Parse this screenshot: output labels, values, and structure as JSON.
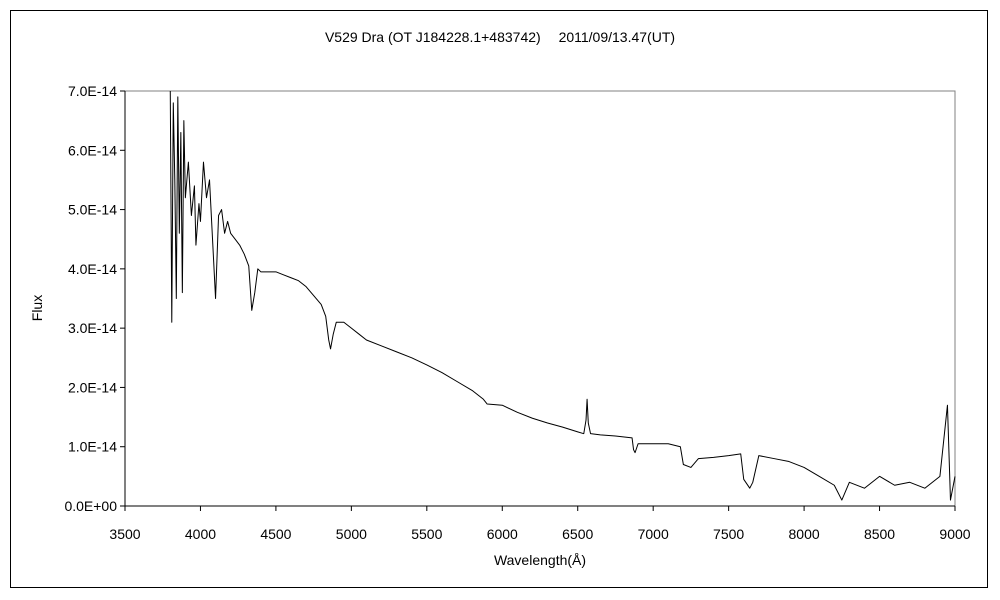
{
  "chart_data": {
    "type": "line",
    "title": "V529 Dra (OT J184228.1+483742)　 2011/09/13.47(UT)",
    "xlabel": "Wavelength(Å)",
    "ylabel": "Flux",
    "xlim": [
      3500,
      9000
    ],
    "ylim": [
      0,
      7e-14
    ],
    "x_ticks": [
      3500,
      4000,
      4500,
      5000,
      5500,
      6000,
      6500,
      7000,
      7500,
      8000,
      8500,
      9000
    ],
    "x_tick_labels": [
      "3500",
      "4000",
      "4500",
      "5000",
      "5500",
      "6000",
      "6500",
      "7000",
      "7500",
      "8000",
      "8500",
      "9000"
    ],
    "y_ticks": [
      0,
      1e-14,
      2e-14,
      3e-14,
      4e-14,
      5e-14,
      6e-14,
      7e-14
    ],
    "y_tick_labels": [
      "0.0E+00",
      "1.0E-14",
      "2.0E-14",
      "3.0E-14",
      "4.0E-14",
      "5.0E-14",
      "6.0E-14",
      "7.0E-14"
    ],
    "grid": false,
    "legend": "none",
    "series": [
      {
        "color": "#000000",
        "points": [
          [
            3800,
            7e-14
          ],
          [
            3810,
            3.1e-14
          ],
          [
            3820,
            6.8e-14
          ],
          [
            3830,
            5.5e-14
          ],
          [
            3840,
            3.5e-14
          ],
          [
            3850,
            6.9e-14
          ],
          [
            3860,
            4.6e-14
          ],
          [
            3870,
            6.3e-14
          ],
          [
            3880,
            3.6e-14
          ],
          [
            3890,
            6.5e-14
          ],
          [
            3900,
            5.2e-14
          ],
          [
            3920,
            5.8e-14
          ],
          [
            3940,
            4.9e-14
          ],
          [
            3960,
            5.4e-14
          ],
          [
            3970,
            4.4e-14
          ],
          [
            3990,
            5.1e-14
          ],
          [
            4000,
            4.8e-14
          ],
          [
            4020,
            5.8e-14
          ],
          [
            4040,
            5.2e-14
          ],
          [
            4060,
            5.5e-14
          ],
          [
            4080,
            4.5e-14
          ],
          [
            4100,
            3.5e-14
          ],
          [
            4120,
            4.9e-14
          ],
          [
            4140,
            5e-14
          ],
          [
            4160,
            4.6e-14
          ],
          [
            4180,
            4.8e-14
          ],
          [
            4200,
            4.6e-14
          ],
          [
            4230,
            4.5e-14
          ],
          [
            4260,
            4.4e-14
          ],
          [
            4290,
            4.25e-14
          ],
          [
            4320,
            4.05e-14
          ],
          [
            4340,
            3.3e-14
          ],
          [
            4360,
            3.6e-14
          ],
          [
            4380,
            4e-14
          ],
          [
            4400,
            3.95e-14
          ],
          [
            4450,
            3.95e-14
          ],
          [
            4500,
            3.95e-14
          ],
          [
            4550,
            3.9e-14
          ],
          [
            4600,
            3.85e-14
          ],
          [
            4650,
            3.8e-14
          ],
          [
            4700,
            3.7e-14
          ],
          [
            4750,
            3.55e-14
          ],
          [
            4800,
            3.4e-14
          ],
          [
            4830,
            3.2e-14
          ],
          [
            4850,
            2.8e-14
          ],
          [
            4862,
            2.65e-14
          ],
          [
            4880,
            2.9e-14
          ],
          [
            4900,
            3.1e-14
          ],
          [
            4950,
            3.1e-14
          ],
          [
            5000,
            3e-14
          ],
          [
            5050,
            2.9e-14
          ],
          [
            5100,
            2.8e-14
          ],
          [
            5200,
            2.7e-14
          ],
          [
            5300,
            2.6e-14
          ],
          [
            5400,
            2.5e-14
          ],
          [
            5500,
            2.38e-14
          ],
          [
            5600,
            2.25e-14
          ],
          [
            5700,
            2.1e-14
          ],
          [
            5800,
            1.95e-14
          ],
          [
            5875,
            1.8e-14
          ],
          [
            5900,
            1.72e-14
          ],
          [
            6000,
            1.7e-14
          ],
          [
            6100,
            1.58e-14
          ],
          [
            6200,
            1.48e-14
          ],
          [
            6300,
            1.4e-14
          ],
          [
            6400,
            1.33e-14
          ],
          [
            6500,
            1.25e-14
          ],
          [
            6540,
            1.22e-14
          ],
          [
            6555,
            1.45e-14
          ],
          [
            6562,
            1.8e-14
          ],
          [
            6570,
            1.4e-14
          ],
          [
            6585,
            1.22e-14
          ],
          [
            6650,
            1.2e-14
          ],
          [
            6750,
            1.18e-14
          ],
          [
            6860,
            1.15e-14
          ],
          [
            6870,
            9.5e-15
          ],
          [
            6880,
            9e-15
          ],
          [
            6900,
            1.05e-14
          ],
          [
            7000,
            1.05e-14
          ],
          [
            7100,
            1.05e-14
          ],
          [
            7180,
            1e-14
          ],
          [
            7200,
            7e-15
          ],
          [
            7250,
            6.5e-15
          ],
          [
            7300,
            8e-15
          ],
          [
            7400,
            8.2e-15
          ],
          [
            7500,
            8.5e-15
          ],
          [
            7580,
            8.8e-15
          ],
          [
            7600,
            4.5e-15
          ],
          [
            7640,
            3e-15
          ],
          [
            7660,
            4e-15
          ],
          [
            7700,
            8.5e-15
          ],
          [
            7800,
            8e-15
          ],
          [
            7900,
            7.5e-15
          ],
          [
            8000,
            6.5e-15
          ],
          [
            8100,
            5e-15
          ],
          [
            8200,
            3.5e-15
          ],
          [
            8250,
            1e-15
          ],
          [
            8300,
            4e-15
          ],
          [
            8400,
            3e-15
          ],
          [
            8500,
            5e-15
          ],
          [
            8600,
            3.5e-15
          ],
          [
            8700,
            4e-15
          ],
          [
            8800,
            3e-15
          ],
          [
            8900,
            5e-15
          ],
          [
            8950,
            1.7e-14
          ],
          [
            8970,
            1e-15
          ],
          [
            9000,
            5e-15
          ]
        ]
      }
    ]
  }
}
